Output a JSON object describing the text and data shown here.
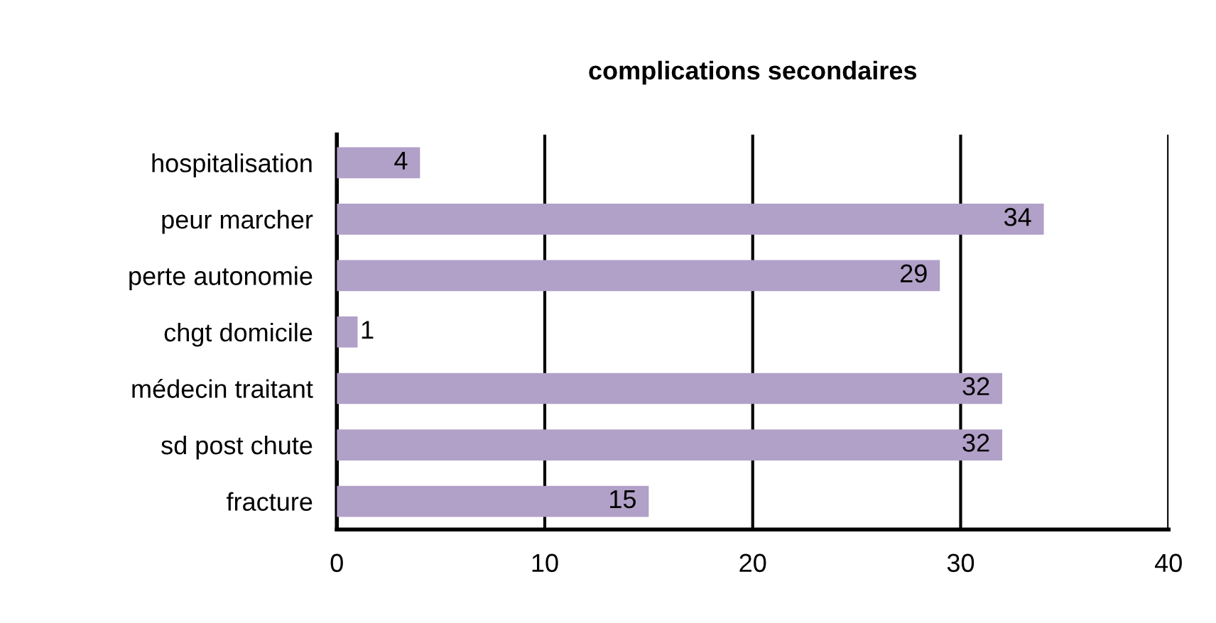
{
  "chart_data": {
    "type": "bar",
    "orientation": "horizontal",
    "title": "complications secondaires",
    "categories": [
      "hospitalisation",
      "peur marcher",
      "perte autonomie",
      "chgt domicile",
      "médecin traitant",
      "sd post chute",
      "fracture"
    ],
    "values": [
      4,
      34,
      29,
      1,
      32,
      32,
      15
    ],
    "color": "#b1a0c7",
    "data_labels": true,
    "xlim": [
      0,
      40
    ],
    "xticks": [
      0,
      10,
      20,
      30,
      40
    ],
    "grid": "x",
    "legend": false
  }
}
